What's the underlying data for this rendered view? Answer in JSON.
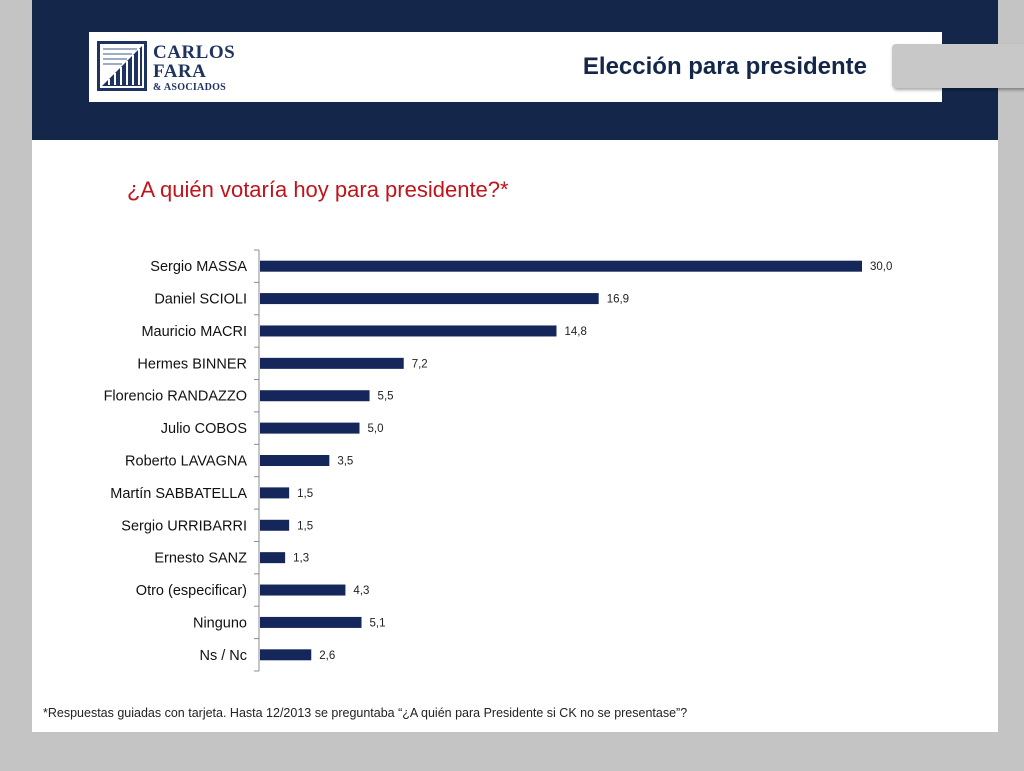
{
  "header": {
    "logo_line1": "CARLOS",
    "logo_line2": "FARA",
    "logo_line3": "& ASOCIADOS",
    "title": "Elección para presidente"
  },
  "question": "¿A quién votaría hoy para presidente?*",
  "footnote": "*Respuestas guiadas con tarjeta. Hasta 12/2013 se preguntaba “¿A quién para Presidente si CK no se presentase”?",
  "colors": {
    "bar": "#14265a",
    "header": "#14274a",
    "question": "#c0141c"
  },
  "chart_data": {
    "type": "bar",
    "orientation": "horizontal",
    "categories": [
      "Sergio MASSA",
      "Daniel SCIOLI",
      "Mauricio MACRI",
      "Hermes BINNER",
      "Florencio RANDAZZO",
      "Julio COBOS",
      "Roberto LAVAGNA",
      "Martín SABBATELLA",
      "Sergio URRIBARRI",
      "Ernesto SANZ",
      "Otro (especificar)",
      "Ninguno",
      "Ns / Nc"
    ],
    "values": [
      30.0,
      16.9,
      14.8,
      7.2,
      5.5,
      5.0,
      3.5,
      1.5,
      1.5,
      1.3,
      4.3,
      5.1,
      2.6
    ],
    "value_labels": [
      "30,0",
      "16,9",
      "14,8",
      "7,2",
      "5,5",
      "5,0",
      "3,5",
      "1,5",
      "1,5",
      "1,3",
      "4,3",
      "5,1",
      "2,6"
    ],
    "xlim": [
      0,
      30
    ],
    "grid": false,
    "legend": "none"
  }
}
